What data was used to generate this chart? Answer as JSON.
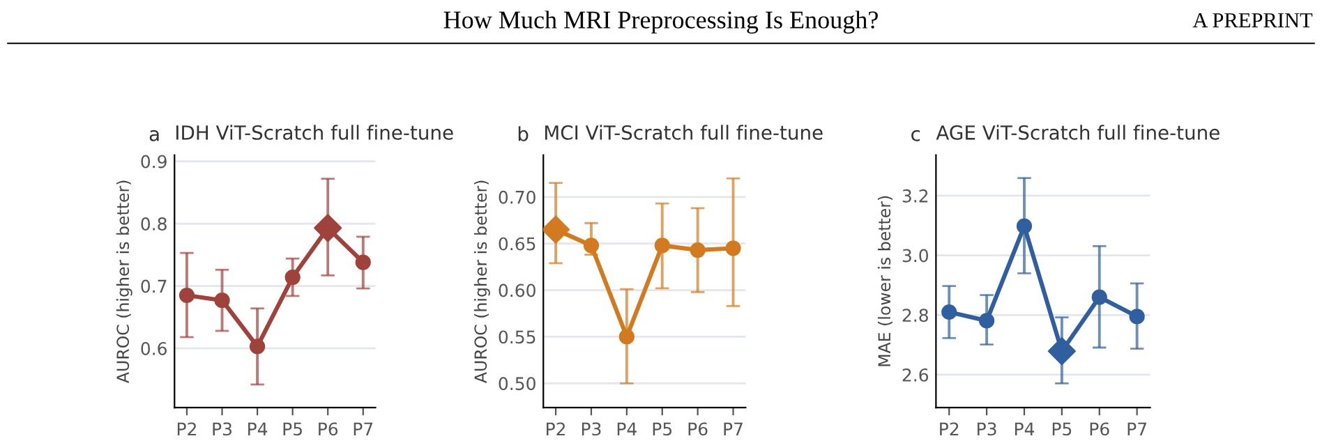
{
  "chart_data": [
    {
      "type": "other",
      "title": "How Much MRI Preprocessing Is Enough?",
      "annotations": [
        "A PREPRINT"
      ]
    },
    {
      "type": "line",
      "title": "IDH ViT-Scratch full fine-tune",
      "ylabel": "AUROC (higher is better)",
      "annotations": [
        "a"
      ],
      "categories": [
        "P2",
        "P3",
        "P4",
        "P5",
        "P6",
        "P7"
      ],
      "ylim": [
        0.505,
        0.91
      ],
      "yticks": [
        0.6,
        0.7,
        0.8,
        0.9
      ],
      "grid": "y",
      "legend": false,
      "series": [
        {
          "type": "line",
          "color": "#a0423c",
          "marker": "circle",
          "line_style": "solid",
          "values": [
            0.685,
            0.677,
            0.603,
            0.714,
            0.793,
            0.738
          ],
          "errors": [
            [
              0.618,
              0.753
            ],
            [
              0.628,
              0.726
            ],
            [
              0.542,
              0.664
            ],
            [
              0.684,
              0.744
            ],
            [
              0.717,
              0.872
            ],
            [
              0.696,
              0.779
            ]
          ]
        },
        {
          "type": "scatter",
          "color": "#a0423c",
          "marker": "diamond",
          "values": [
            null,
            null,
            null,
            null,
            0.793,
            null
          ]
        }
      ]
    },
    {
      "type": "line",
      "title": "MCI ViT-Scratch full fine-tune",
      "ylabel": "AUROC (higher is better)",
      "annotations": [
        "b"
      ],
      "categories": [
        "P2",
        "P3",
        "P4",
        "P5",
        "P6",
        "P7"
      ],
      "ylim": [
        0.474,
        0.745
      ],
      "yticks": [
        {
          "value": 0.5,
          "label": "0.50"
        },
        0.55,
        {
          "value": 0.6,
          "label": "0.60"
        },
        0.65,
        {
          "value": 0.7,
          "label": "0.70"
        }
      ],
      "grid": "y",
      "legend": false,
      "series": [
        {
          "type": "line",
          "color": "#d27a1f",
          "marker": "circle",
          "line_style": "solid",
          "values": [
            0.665,
            0.648,
            0.55,
            0.648,
            0.643,
            0.645
          ],
          "errors": [
            [
              0.629,
              0.715
            ],
            [
              0.638,
              0.672
            ],
            [
              0.5,
              0.601
            ],
            [
              0.602,
              0.693
            ],
            [
              0.598,
              0.688
            ],
            [
              0.583,
              0.72
            ]
          ]
        },
        {
          "type": "scatter",
          "color": "#d27a1f",
          "marker": "diamond",
          "values": [
            0.665,
            null,
            null,
            null,
            null,
            null
          ]
        }
      ]
    },
    {
      "type": "line",
      "title": "AGE ViT-Scratch full fine-tune",
      "ylabel": "MAE (lower is better)",
      "annotations": [
        "c"
      ],
      "categories": [
        "P2",
        "P3",
        "P4",
        "P5",
        "P6",
        "P7"
      ],
      "ylim": [
        2.49,
        3.336
      ],
      "yticks": [
        2.6,
        2.8,
        {
          "value": 3.0,
          "label": "3.0"
        },
        3.2
      ],
      "grid": "y",
      "legend": false,
      "series": [
        {
          "type": "line",
          "color": "#2f5f9e",
          "marker": "circle",
          "line_style": "solid",
          "values": [
            2.81,
            2.781,
            3.098,
            2.679,
            2.86,
            2.795
          ],
          "errors": [
            [
              2.723,
              2.897
            ],
            [
              2.701,
              2.867
            ],
            [
              2.94,
              3.259
            ],
            [
              2.571,
              2.792
            ],
            [
              2.691,
              3.031
            ],
            [
              2.687,
              2.906
            ]
          ]
        },
        {
          "type": "scatter",
          "color": "#2f5f9e",
          "marker": "diamond",
          "values": [
            null,
            null,
            null,
            2.679,
            null,
            null
          ]
        }
      ]
    }
  ]
}
